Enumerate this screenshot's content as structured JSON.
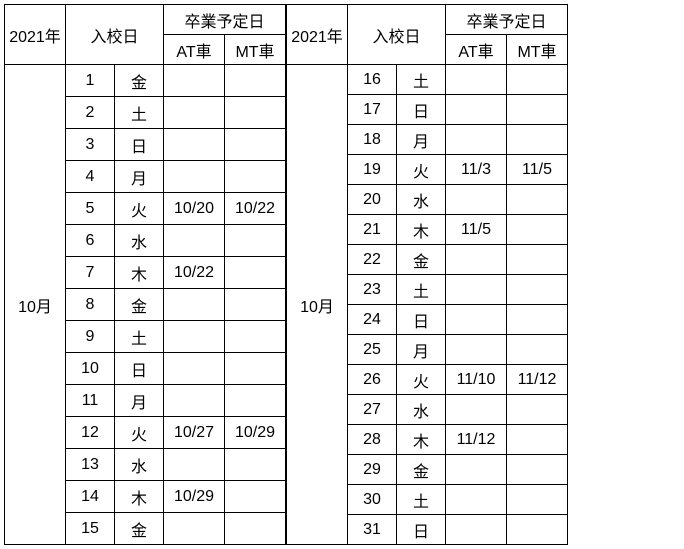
{
  "header": {
    "year": "2021年",
    "enrollDate": "入校日",
    "gradDate": "卒業予定日",
    "atCar": "AT車",
    "mtCar": "MT車"
  },
  "month": "10月",
  "left": {
    "rows": [
      {
        "day": "1",
        "wd": "金",
        "at": "",
        "mt": ""
      },
      {
        "day": "2",
        "wd": "土",
        "at": "",
        "mt": ""
      },
      {
        "day": "3",
        "wd": "日",
        "at": "",
        "mt": ""
      },
      {
        "day": "4",
        "wd": "月",
        "at": "",
        "mt": ""
      },
      {
        "day": "5",
        "wd": "火",
        "at": "10/20",
        "mt": "10/22"
      },
      {
        "day": "6",
        "wd": "水",
        "at": "",
        "mt": ""
      },
      {
        "day": "7",
        "wd": "木",
        "at": "10/22",
        "mt": ""
      },
      {
        "day": "8",
        "wd": "金",
        "at": "",
        "mt": ""
      },
      {
        "day": "9",
        "wd": "土",
        "at": "",
        "mt": ""
      },
      {
        "day": "10",
        "wd": "日",
        "at": "",
        "mt": ""
      },
      {
        "day": "11",
        "wd": "月",
        "at": "",
        "mt": ""
      },
      {
        "day": "12",
        "wd": "火",
        "at": "10/27",
        "mt": "10/29"
      },
      {
        "day": "13",
        "wd": "水",
        "at": "",
        "mt": ""
      },
      {
        "day": "14",
        "wd": "木",
        "at": "10/29",
        "mt": ""
      },
      {
        "day": "15",
        "wd": "金",
        "at": "",
        "mt": ""
      }
    ]
  },
  "right": {
    "rows": [
      {
        "day": "16",
        "wd": "土",
        "at": "",
        "mt": ""
      },
      {
        "day": "17",
        "wd": "日",
        "at": "",
        "mt": ""
      },
      {
        "day": "18",
        "wd": "月",
        "at": "",
        "mt": ""
      },
      {
        "day": "19",
        "wd": "火",
        "at": "11/3",
        "mt": "11/5"
      },
      {
        "day": "20",
        "wd": "水",
        "at": "",
        "mt": ""
      },
      {
        "day": "21",
        "wd": "木",
        "at": "11/5",
        "mt": ""
      },
      {
        "day": "22",
        "wd": "金",
        "at": "",
        "mt": ""
      },
      {
        "day": "23",
        "wd": "土",
        "at": "",
        "mt": ""
      },
      {
        "day": "24",
        "wd": "日",
        "at": "",
        "mt": ""
      },
      {
        "day": "25",
        "wd": "月",
        "at": "",
        "mt": ""
      },
      {
        "day": "26",
        "wd": "火",
        "at": "11/10",
        "mt": "11/12"
      },
      {
        "day": "27",
        "wd": "水",
        "at": "",
        "mt": ""
      },
      {
        "day": "28",
        "wd": "木",
        "at": "11/12",
        "mt": ""
      },
      {
        "day": "29",
        "wd": "金",
        "at": "",
        "mt": ""
      },
      {
        "day": "30",
        "wd": "土",
        "at": "",
        "mt": ""
      },
      {
        "day": "31",
        "wd": "日",
        "at": "",
        "mt": ""
      }
    ]
  }
}
